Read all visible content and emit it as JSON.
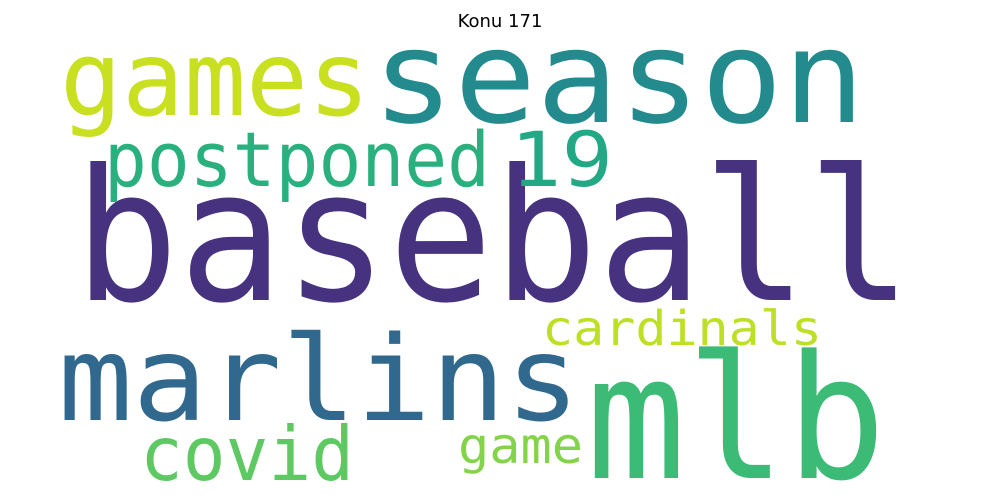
{
  "title": "Konu 171",
  "words": [
    {
      "text": "baseball",
      "color": "#46327e"
    },
    {
      "text": "season",
      "color": "#238a8d"
    },
    {
      "text": "games",
      "color": "#c8e020"
    },
    {
      "text": "marlins",
      "color": "#31688e"
    },
    {
      "text": "mlb",
      "color": "#3bbb75"
    },
    {
      "text": "postponed",
      "color": "#2ab07f"
    },
    {
      "text": "19",
      "color": "#22a884"
    },
    {
      "text": "cardinals",
      "color": "#bddf26"
    },
    {
      "text": "covid",
      "color": "#5ec962"
    },
    {
      "text": "game",
      "color": "#84d44b"
    }
  ]
}
